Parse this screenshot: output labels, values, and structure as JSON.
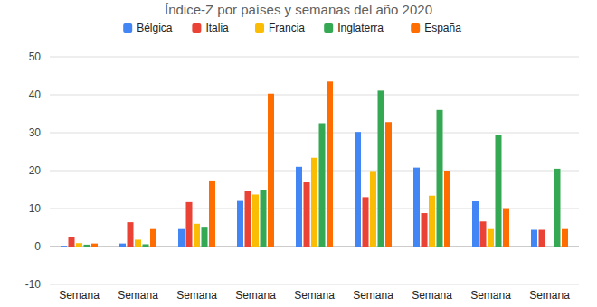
{
  "chart_data": {
    "type": "bar",
    "title": "Índice-Z por países y semanas del año 2020",
    "categories": [
      "Semana",
      "Semana",
      "Semana",
      "Semana",
      "Semana",
      "Semana",
      "Semana",
      "Semana",
      "Semana"
    ],
    "series": [
      {
        "name": "Bélgica",
        "color": "#4285f4",
        "values": [
          0.2,
          0.8,
          4.6,
          12.0,
          21.0,
          30.2,
          20.8,
          11.9,
          4.4
        ]
      },
      {
        "name": "Italia",
        "color": "#ea4335",
        "values": [
          2.6,
          6.4,
          11.7,
          14.6,
          16.9,
          13.0,
          8.8,
          6.6,
          4.4
        ]
      },
      {
        "name": "Francia",
        "color": "#fbbc04",
        "values": [
          0.9,
          1.8,
          6.0,
          13.7,
          23.4,
          19.9,
          13.4,
          4.6,
          null
        ]
      },
      {
        "name": "Inglaterra",
        "color": "#34a853",
        "values": [
          0.5,
          0.6,
          5.2,
          15.0,
          32.5,
          41.1,
          36.0,
          29.4,
          20.5
        ]
      },
      {
        "name": "España",
        "color": "#ff6d01",
        "values": [
          0.8,
          4.6,
          17.4,
          40.3,
          43.5,
          32.8,
          20.0,
          10.1,
          4.6
        ]
      }
    ],
    "ylim": [
      -10,
      50
    ],
    "yticks": [
      -10,
      0,
      10,
      20,
      30,
      40,
      50
    ],
    "grid": true,
    "legend": "top"
  }
}
